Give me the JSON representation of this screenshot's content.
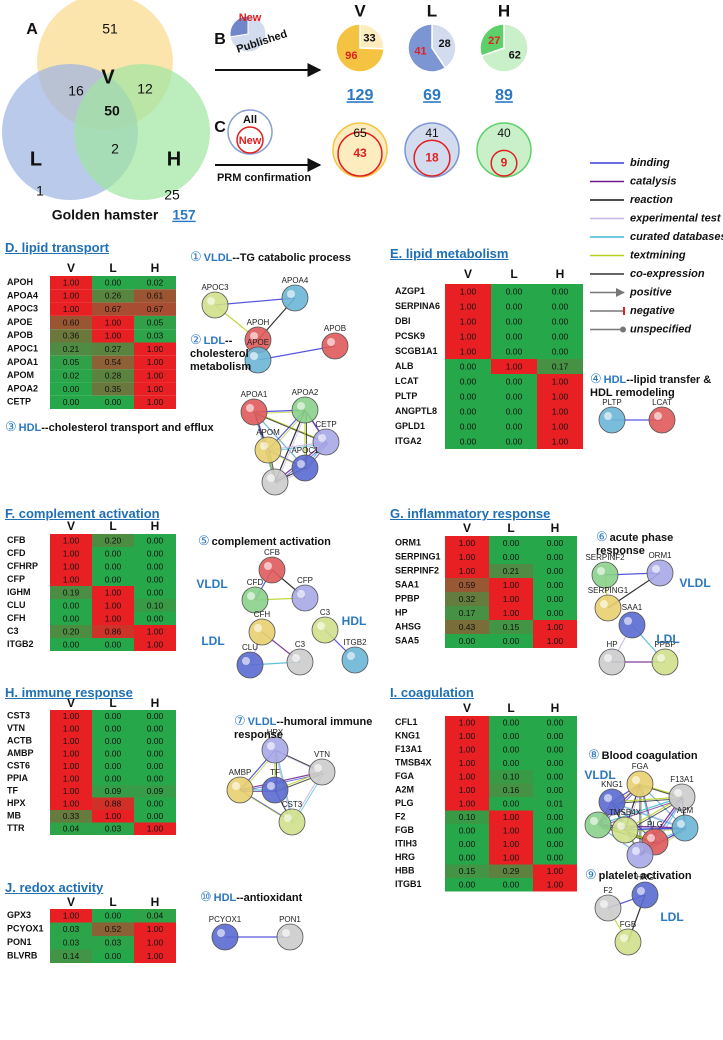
{
  "venn": {
    "label": "A",
    "sets": [
      "V",
      "L",
      "H"
    ],
    "colors": [
      "#fbd98a",
      "#9db3e3",
      "#9fe59f"
    ],
    "regions": [
      51,
      16,
      12,
      50,
      1,
      2,
      25
    ],
    "caption": "Golden hamster",
    "total": 157
  },
  "pies": {
    "label": "B",
    "legend": {
      "new": "New",
      "published": "Published"
    },
    "groups": [
      {
        "name": "V",
        "published": 33,
        "new": 96,
        "total": 129,
        "colors": {
          "new": "#f5c342",
          "published": "#fdecbd"
        }
      },
      {
        "name": "L",
        "published": 28,
        "new": 41,
        "total": 69,
        "colors": {
          "new": "#7b96d2",
          "published": "#d3dcef"
        }
      },
      {
        "name": "H",
        "published": 62,
        "new": 27,
        "total": 89,
        "colors": {
          "new": "#5fcf6a",
          "published": "#c9f0c9"
        }
      }
    ]
  },
  "prm": {
    "label": "C",
    "legend": {
      "all": "All",
      "new": "New"
    },
    "caption": "PRM confirmation",
    "groups": [
      {
        "all": 65,
        "new": 43
      },
      {
        "all": 41,
        "new": 18
      },
      {
        "all": 40,
        "new": 9
      }
    ]
  },
  "interaction_legend": [
    {
      "label": "binding",
      "color": "#3a3ad8",
      "marker": "line"
    },
    {
      "label": "catalysis",
      "color": "#6a1a8a",
      "marker": "line"
    },
    {
      "label": "reaction",
      "color": "#111111",
      "marker": "line"
    },
    {
      "label": "experimental test",
      "color": "#c8b4e8",
      "marker": "line"
    },
    {
      "label": "curated databases",
      "color": "#40b8d0",
      "marker": "line"
    },
    {
      "label": "textmining",
      "color": "#b8d020",
      "marker": "line"
    },
    {
      "label": "co-expression",
      "color": "#333333",
      "marker": "line"
    },
    {
      "label": "positive",
      "color": "#777777",
      "marker": "arrow"
    },
    {
      "label": "negative",
      "color": "#777777",
      "marker": "bar"
    },
    {
      "label": "unspecified",
      "color": "#777777",
      "marker": "dot"
    }
  ],
  "panels": [
    {
      "title": "D. lipid transport",
      "columns": [
        "V",
        "L",
        "H"
      ],
      "rows": [
        [
          "APOH",
          "1.00",
          "0.00",
          "0.02"
        ],
        [
          "APOA4",
          "1.00",
          "0.26",
          "0.61"
        ],
        [
          "APOC3",
          "1.00",
          "0.67",
          "0.67"
        ],
        [
          "APOE",
          "0.60",
          "1.00",
          "0.05"
        ],
        [
          "APOB",
          "0.36",
          "1.00",
          "0.03"
        ],
        [
          "APOC1",
          "0.21",
          "0.27",
          "1.00"
        ],
        [
          "APOA1",
          "0.05",
          "0.54",
          "1.00"
        ],
        [
          "APOM",
          "0.02",
          "0.28",
          "1.00"
        ],
        [
          "APOA2",
          "0.00",
          "0.35",
          "1.00"
        ],
        [
          "CETP",
          "0.00",
          "0.00",
          "1.00"
        ]
      ],
      "networks": [
        {
          "num": "①",
          "group": "VLDL",
          "text": "--TG catabolic process",
          "nodes": [
            "APOC3",
            "APOA4",
            "APOH"
          ]
        },
        {
          "num": "②",
          "group": "LDL",
          "text": "--cholesterol metabolism",
          "nodes": [
            "APOE",
            "APOB"
          ]
        },
        {
          "num": "③",
          "group": "HDL",
          "text": "--cholesterol transport and efflux",
          "nodes": [
            "APOA1",
            "APOA2",
            "CETP",
            "APOM",
            "APOC1"
          ]
        }
      ]
    },
    {
      "title": "E. lipid metabolism",
      "columns": [
        "V",
        "L",
        "H"
      ],
      "rows": [
        [
          "AZGP1",
          "1.00",
          "0.00",
          "0.00"
        ],
        [
          "SERPINA6",
          "1.00",
          "0.00",
          "0.00"
        ],
        [
          "DBI",
          "1.00",
          "0.00",
          "0.00"
        ],
        [
          "PCSK9",
          "1.00",
          "0.00",
          "0.00"
        ],
        [
          "SCGB1A1",
          "1.00",
          "0.00",
          "0.00"
        ],
        [
          "ALB",
          "0.00",
          "1.00",
          "0.17"
        ],
        [
          "LCAT",
          "0.00",
          "0.00",
          "1.00"
        ],
        [
          "PLTP",
          "0.00",
          "0.00",
          "1.00"
        ],
        [
          "ANGPTL8",
          "0.00",
          "0.00",
          "1.00"
        ],
        [
          "GPLD1",
          "0.00",
          "0.00",
          "1.00"
        ],
        [
          "ITGA2",
          "0.00",
          "0.00",
          "1.00"
        ]
      ],
      "networks": [
        {
          "num": "④",
          "group": "HDL",
          "text": "--lipid transfer & HDL remodeling",
          "nodes": [
            "PLTP",
            "LCAT"
          ]
        }
      ]
    },
    {
      "title": "F. complement activation",
      "columns": [
        "V",
        "L",
        "H"
      ],
      "rows": [
        [
          "CFB",
          "1.00",
          "0.20",
          "0.00"
        ],
        [
          "CFD",
          "1.00",
          "0.00",
          "0.00"
        ],
        [
          "CFHRP",
          "1.00",
          "0.00",
          "0.00"
        ],
        [
          "CFP",
          "1.00",
          "0.00",
          "0.00"
        ],
        [
          "IGHM",
          "0.19",
          "1.00",
          "0.00"
        ],
        [
          "CLU",
          "0.00",
          "1.00",
          "0.10"
        ],
        [
          "CFH",
          "0.00",
          "1.00",
          "0.00"
        ],
        [
          "C3",
          "0.20",
          "0.86",
          "1.00"
        ],
        [
          "ITGB2",
          "0.00",
          "0.00",
          "1.00"
        ]
      ],
      "networks": [
        {
          "num": "⑤",
          "text": "complement activation",
          "nodes": [
            "CFB",
            "CFD",
            "CFP",
            "CFH",
            "CLU",
            "C3",
            "C3",
            "ITGB2"
          ],
          "labels": [
            "VLDL",
            "LDL",
            "HDL"
          ]
        }
      ]
    },
    {
      "title": "G. inflammatory response",
      "columns": [
        "V",
        "L",
        "H"
      ],
      "rows": [
        [
          "ORM1",
          "1.00",
          "0.00",
          "0.00"
        ],
        [
          "SERPING1",
          "1.00",
          "0.00",
          "0.00"
        ],
        [
          "SERPINF2",
          "1.00",
          "0.21",
          "0.00"
        ],
        [
          "SAA1",
          "0.59",
          "1.00",
          "0.00"
        ],
        [
          "PPBP",
          "0.32",
          "1.00",
          "0.00"
        ],
        [
          "HP",
          "0.17",
          "1.00",
          "0.00"
        ],
        [
          "AHSG",
          "0.43",
          "0.15",
          "1.00"
        ],
        [
          "SAA5",
          "0.00",
          "0.00",
          "1.00"
        ]
      ],
      "networks": [
        {
          "num": "⑥",
          "text": "acute phase response",
          "nodes": [
            "SERPINF2",
            "ORM1",
            "SERPING1",
            "SAA1",
            "HP",
            "PPBP"
          ],
          "labels": [
            "VLDL",
            "LDL"
          ]
        }
      ]
    },
    {
      "title": "H. immune response",
      "columns": [
        "V",
        "L",
        "H"
      ],
      "rows": [
        [
          "CST3",
          "1.00",
          "0.00",
          "0.00"
        ],
        [
          "VTN",
          "1.00",
          "0.00",
          "0.00"
        ],
        [
          "ACTB",
          "1.00",
          "0.00",
          "0.00"
        ],
        [
          "AMBP",
          "1.00",
          "0.00",
          "0.00"
        ],
        [
          "CST6",
          "1.00",
          "0.00",
          "0.00"
        ],
        [
          "PPIA",
          "1.00",
          "0.00",
          "0.00"
        ],
        [
          "TF",
          "1.00",
          "0.09",
          "0.09"
        ],
        [
          "HPX",
          "1.00",
          "0.88",
          "0.00"
        ],
        [
          "MB",
          "0.33",
          "1.00",
          "0.00"
        ],
        [
          "TTR",
          "0.04",
          "0.03",
          "1.00"
        ]
      ],
      "networks": [
        {
          "num": "⑦",
          "group": "VLDL",
          "text": "--humoral immune response",
          "nodes": [
            "HPX",
            "AMBP",
            "TF",
            "VTN",
            "CST3"
          ]
        }
      ]
    },
    {
      "title": "I. coagulation",
      "columns": [
        "V",
        "L",
        "H"
      ],
      "rows": [
        [
          "CFL1",
          "1.00",
          "0.00",
          "0.00"
        ],
        [
          "KNG1",
          "1.00",
          "0.00",
          "0.00"
        ],
        [
          "F13A1",
          "1.00",
          "0.00",
          "0.00"
        ],
        [
          "TMSB4X",
          "1.00",
          "0.00",
          "0.00"
        ],
        [
          "FGA",
          "1.00",
          "0.10",
          "0.00"
        ],
        [
          "A2M",
          "1.00",
          "0.16",
          "0.00"
        ],
        [
          "PLG",
          "1.00",
          "0.00",
          "0.01"
        ],
        [
          "F2",
          "0.10",
          "1.00",
          "0.00"
        ],
        [
          "FGB",
          "0.00",
          "1.00",
          "0.00"
        ],
        [
          "ITIH3",
          "0.00",
          "1.00",
          "0.00"
        ],
        [
          "HRG",
          "0.00",
          "1.00",
          "0.00"
        ],
        [
          "HBB",
          "0.15",
          "0.29",
          "1.00"
        ],
        [
          "ITGB1",
          "0.00",
          "0.00",
          "1.00"
        ]
      ],
      "networks": [
        {
          "num": "⑧",
          "text": "Blood coagulation",
          "nodes": [
            "FGA",
            "KNG1",
            "F13A1",
            "TMSB4X",
            "A2M",
            "PLG"
          ],
          "labels": [
            "VLDL"
          ]
        },
        {
          "num": "⑨",
          "text": "platelet activation",
          "nodes": [
            "HRG",
            "F2",
            "FGB"
          ],
          "labels": [
            "LDL"
          ]
        }
      ]
    },
    {
      "title": "J. redox activity",
      "columns": [
        "V",
        "L",
        "H"
      ],
      "rows": [
        [
          "GPX3",
          "1.00",
          "0.00",
          "0.04"
        ],
        [
          "PCYOX1",
          "0.03",
          "0.52",
          "1.00"
        ],
        [
          "PON1",
          "0.03",
          "0.03",
          "1.00"
        ],
        [
          "BLVRB",
          "0.14",
          "0.00",
          "1.00"
        ]
      ],
      "networks": [
        {
          "num": "⑩",
          "group": "HDL",
          "text": "--antioxidant",
          "nodes": [
            "PCYOX1",
            "PON1"
          ]
        }
      ]
    }
  ]
}
